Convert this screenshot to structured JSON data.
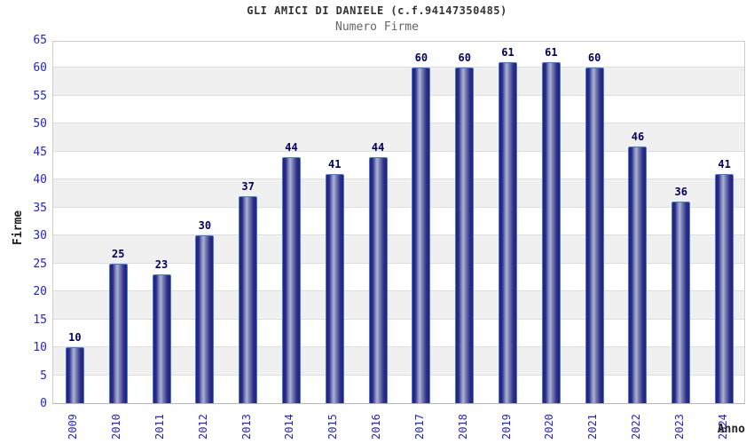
{
  "chart_data": {
    "type": "bar",
    "title": "GLI AMICI DI DANIELE (c.f.94147350485)",
    "subtitle": "Numero Firme",
    "categories": [
      "2009",
      "2010",
      "2011",
      "2012",
      "2013",
      "2014",
      "2015",
      "2016",
      "2017",
      "2018",
      "2019",
      "2020",
      "2021",
      "2022",
      "2023",
      "2024"
    ],
    "values": [
      10,
      25,
      23,
      30,
      37,
      44,
      41,
      44,
      60,
      60,
      61,
      61,
      60,
      46,
      36,
      41
    ],
    "xlabel": "Anno",
    "ylabel": "Firme",
    "ylim": [
      0,
      65
    ],
    "ytick_step": 5,
    "grid": "alternating-horizontal-bands",
    "legend_position": "none",
    "value_labels": "above-bars",
    "xtick_rotation": "vertical-bottom-to-top"
  },
  "colors": {
    "page_bg": "#ffffff",
    "plot_bg": "#ffffff",
    "band_gray": "#f0f0f0",
    "gridline": "#dedede",
    "plot_border": "#cccccc",
    "axis_line": "#b5b5b5",
    "bar_dark": "#22227c",
    "bar_mid": "#767ead",
    "bar_light": "#aab1d6",
    "bar_border": "#4079e0",
    "tick_label": "#2424cc",
    "value_label": "#000060",
    "title": "#333333",
    "subtitle": "#666666",
    "axis_title": "#222222"
  }
}
